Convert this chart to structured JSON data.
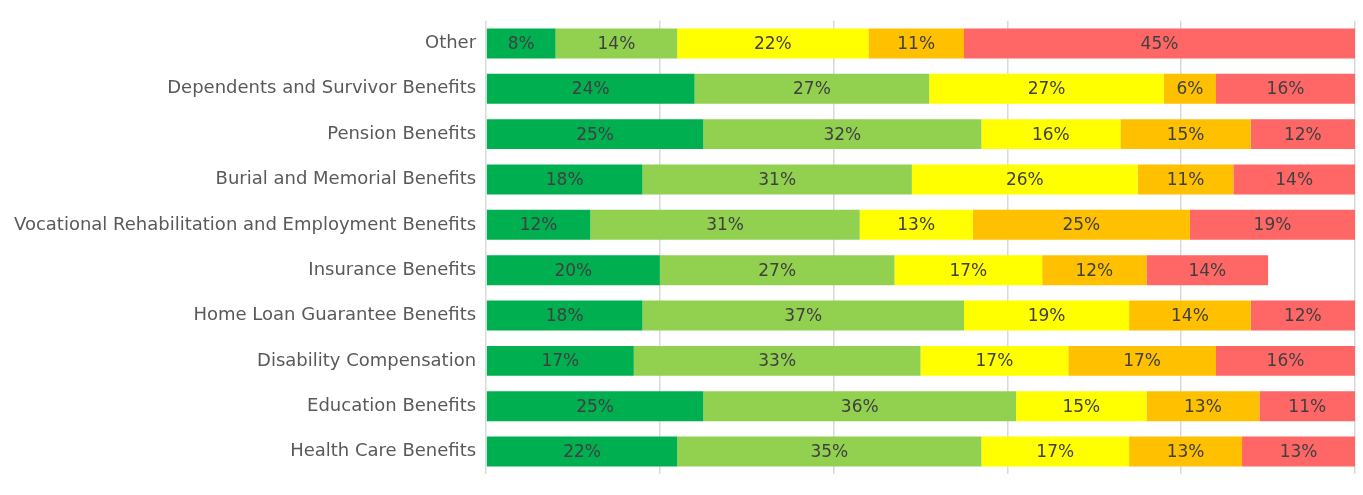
{
  "chart_data": {
    "type": "bar",
    "orientation": "horizontal",
    "stacked": true,
    "categories": [
      "Other",
      "Dependents and Survivor Benefits",
      "Pension Benefits",
      "Burial and Memorial Benefits",
      "Vocational Rehabilitation and Employment Benefits",
      "Insurance Benefits",
      "Home Loan Guarantee Benefits",
      "Disability Compensation",
      "Education Benefits",
      "Health Care Benefits"
    ],
    "series": [
      {
        "color": "#00b050",
        "values": [
          8,
          24,
          25,
          18,
          12,
          20,
          18,
          17,
          25,
          22
        ],
        "value_labels": [
          "8%",
          "24%",
          "25%",
          "18%",
          "12%",
          "20%",
          "18%",
          "17%",
          "25%",
          "22%"
        ]
      },
      {
        "color": "#92d050",
        "values": [
          14,
          27,
          32,
          31,
          31,
          27,
          37,
          33,
          36,
          35
        ],
        "value_labels": [
          "14%",
          "27%",
          "32%",
          "31%",
          "31%",
          "27%",
          "37%",
          "33%",
          "36%",
          "35%"
        ]
      },
      {
        "color": "#ffff00",
        "values": [
          22,
          27,
          16,
          26,
          13,
          17,
          19,
          17,
          15,
          17
        ],
        "value_labels": [
          "22%",
          "27%",
          "16%",
          "26%",
          "13%",
          "17%",
          "19%",
          "17%",
          "15%",
          "17%"
        ]
      },
      {
        "color": "#ffc000",
        "values": [
          11,
          6,
          15,
          11,
          25,
          12,
          14,
          17,
          13,
          13
        ],
        "value_labels": [
          "11%",
          "6%",
          "15%",
          "11%",
          "25%",
          "12%",
          "14%",
          "17%",
          "13%",
          "13%"
        ]
      },
      {
        "color": "#ff6666",
        "values": [
          45,
          16,
          12,
          14,
          19,
          14,
          12,
          16,
          11,
          13
        ],
        "value_labels": [
          "45%",
          "16%",
          "12%",
          "14%",
          "19%",
          "14%",
          "12%",
          "16%",
          "11%",
          "13%"
        ]
      }
    ],
    "xlim": [
      0,
      100
    ],
    "xticks": [
      {
        "value": 0,
        "label": null
      },
      {
        "value": 20,
        "label": null
      },
      {
        "value": 40,
        "label": null
      },
      {
        "value": 60,
        "label": null
      },
      {
        "value": 80,
        "label": null
      },
      {
        "value": 100,
        "label": null
      }
    ],
    "grid": "x",
    "tick_labels": "y",
    "legend": false
  }
}
